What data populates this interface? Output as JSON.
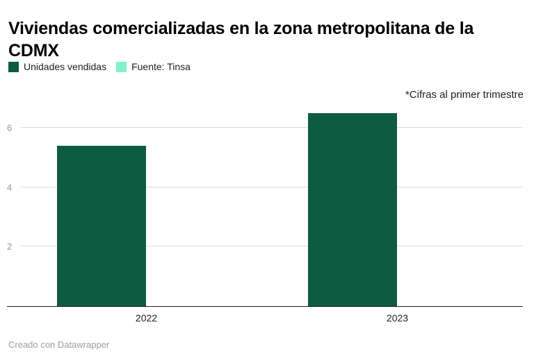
{
  "header": {
    "title": "Viviendas comercializadas en la zona metropolitana de la CDMX",
    "annotation": "*Cifras al primer trimestre"
  },
  "legend": {
    "items": [
      {
        "label": "Unidades vendidas",
        "color": "#0d5b40"
      },
      {
        "label": "Fuente: Tinsa",
        "color": "#80f2c6"
      }
    ]
  },
  "footer": {
    "credit": "Creado con Datawrapper"
  },
  "chart_data": {
    "type": "bar",
    "title": "Viviendas comercializadas en la zona metropolitana de la CDMX",
    "categories": [
      "2022",
      "2023"
    ],
    "values": [
      5.4,
      6.5
    ],
    "series_name": "Unidades vendidas",
    "xlabel": "",
    "ylabel": "",
    "ylim": [
      0,
      6.8
    ],
    "yticks": [
      2,
      4,
      6
    ],
    "grid": true,
    "legend_position": "top-left",
    "bar_color": "#0d5b40",
    "annotation": "*Cifras al primer trimestre"
  }
}
